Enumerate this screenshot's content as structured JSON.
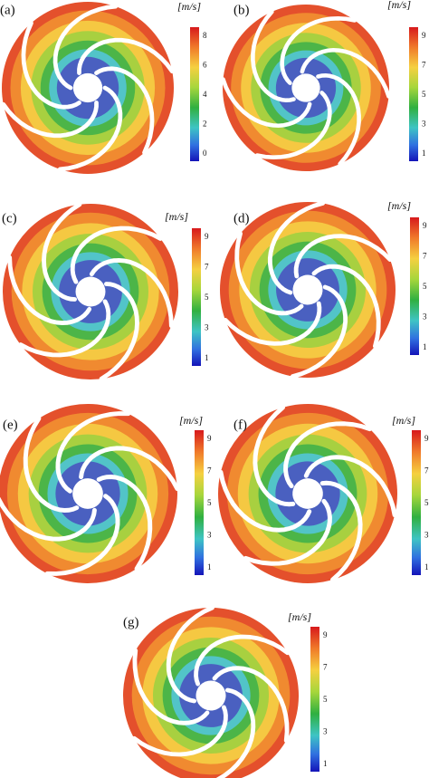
{
  "panels": [
    {
      "label": "(a)",
      "unit": "[m/s]",
      "ticks": [
        "8",
        "6",
        "4",
        "2",
        "0"
      ]
    },
    {
      "label": "(b)",
      "unit": "[m/s]",
      "ticks": [
        "9",
        "7",
        "5",
        "3",
        "1"
      ]
    },
    {
      "label": "(c)",
      "unit": "[m/s]",
      "ticks": [
        "9",
        "7",
        "5",
        "3",
        "1"
      ]
    },
    {
      "label": "(d)",
      "unit": "[m/s]",
      "ticks": [
        "9",
        "7",
        "5",
        "3",
        "1"
      ]
    },
    {
      "label": "(e)",
      "unit": "[m/s]",
      "ticks": [
        "9",
        "7",
        "5",
        "3",
        "1"
      ]
    },
    {
      "label": "(f)",
      "unit": "[m/s]",
      "ticks": [
        "9",
        "7",
        "5",
        "3",
        "1"
      ]
    },
    {
      "label": "(g)",
      "unit": "[m/s]",
      "ticks": [
        "9",
        "7",
        "5",
        "3",
        "1"
      ]
    }
  ]
}
